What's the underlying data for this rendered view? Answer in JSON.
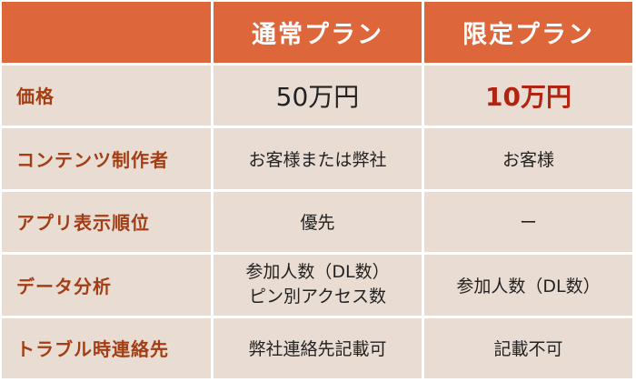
{
  "colors": {
    "header_bg": "#DD673A",
    "cell_bg": "#E8DCD3",
    "label_text": "#A33E14",
    "highlight_text": "#B22410"
  },
  "headers": [
    "",
    "通常プラン",
    "限定プラン"
  ],
  "rows": [
    {
      "label": "価格",
      "standard": [
        "50万円"
      ],
      "limited": [
        "10万円"
      ]
    },
    {
      "label": "コンテンツ制作者",
      "standard": [
        "お客様または弊社"
      ],
      "limited": [
        "お客様"
      ]
    },
    {
      "label": "アプリ表示順位",
      "standard": [
        "優先"
      ],
      "limited": [
        "ー"
      ]
    },
    {
      "label": "データ分析",
      "standard": [
        "参加人数（DL数）",
        "ピン別アクセス数"
      ],
      "limited": [
        "参加人数（DL数）"
      ]
    },
    {
      "label": "トラブル時連絡先",
      "standard": [
        "弊社連絡先記載可"
      ],
      "limited": [
        "記載不可"
      ]
    }
  ]
}
